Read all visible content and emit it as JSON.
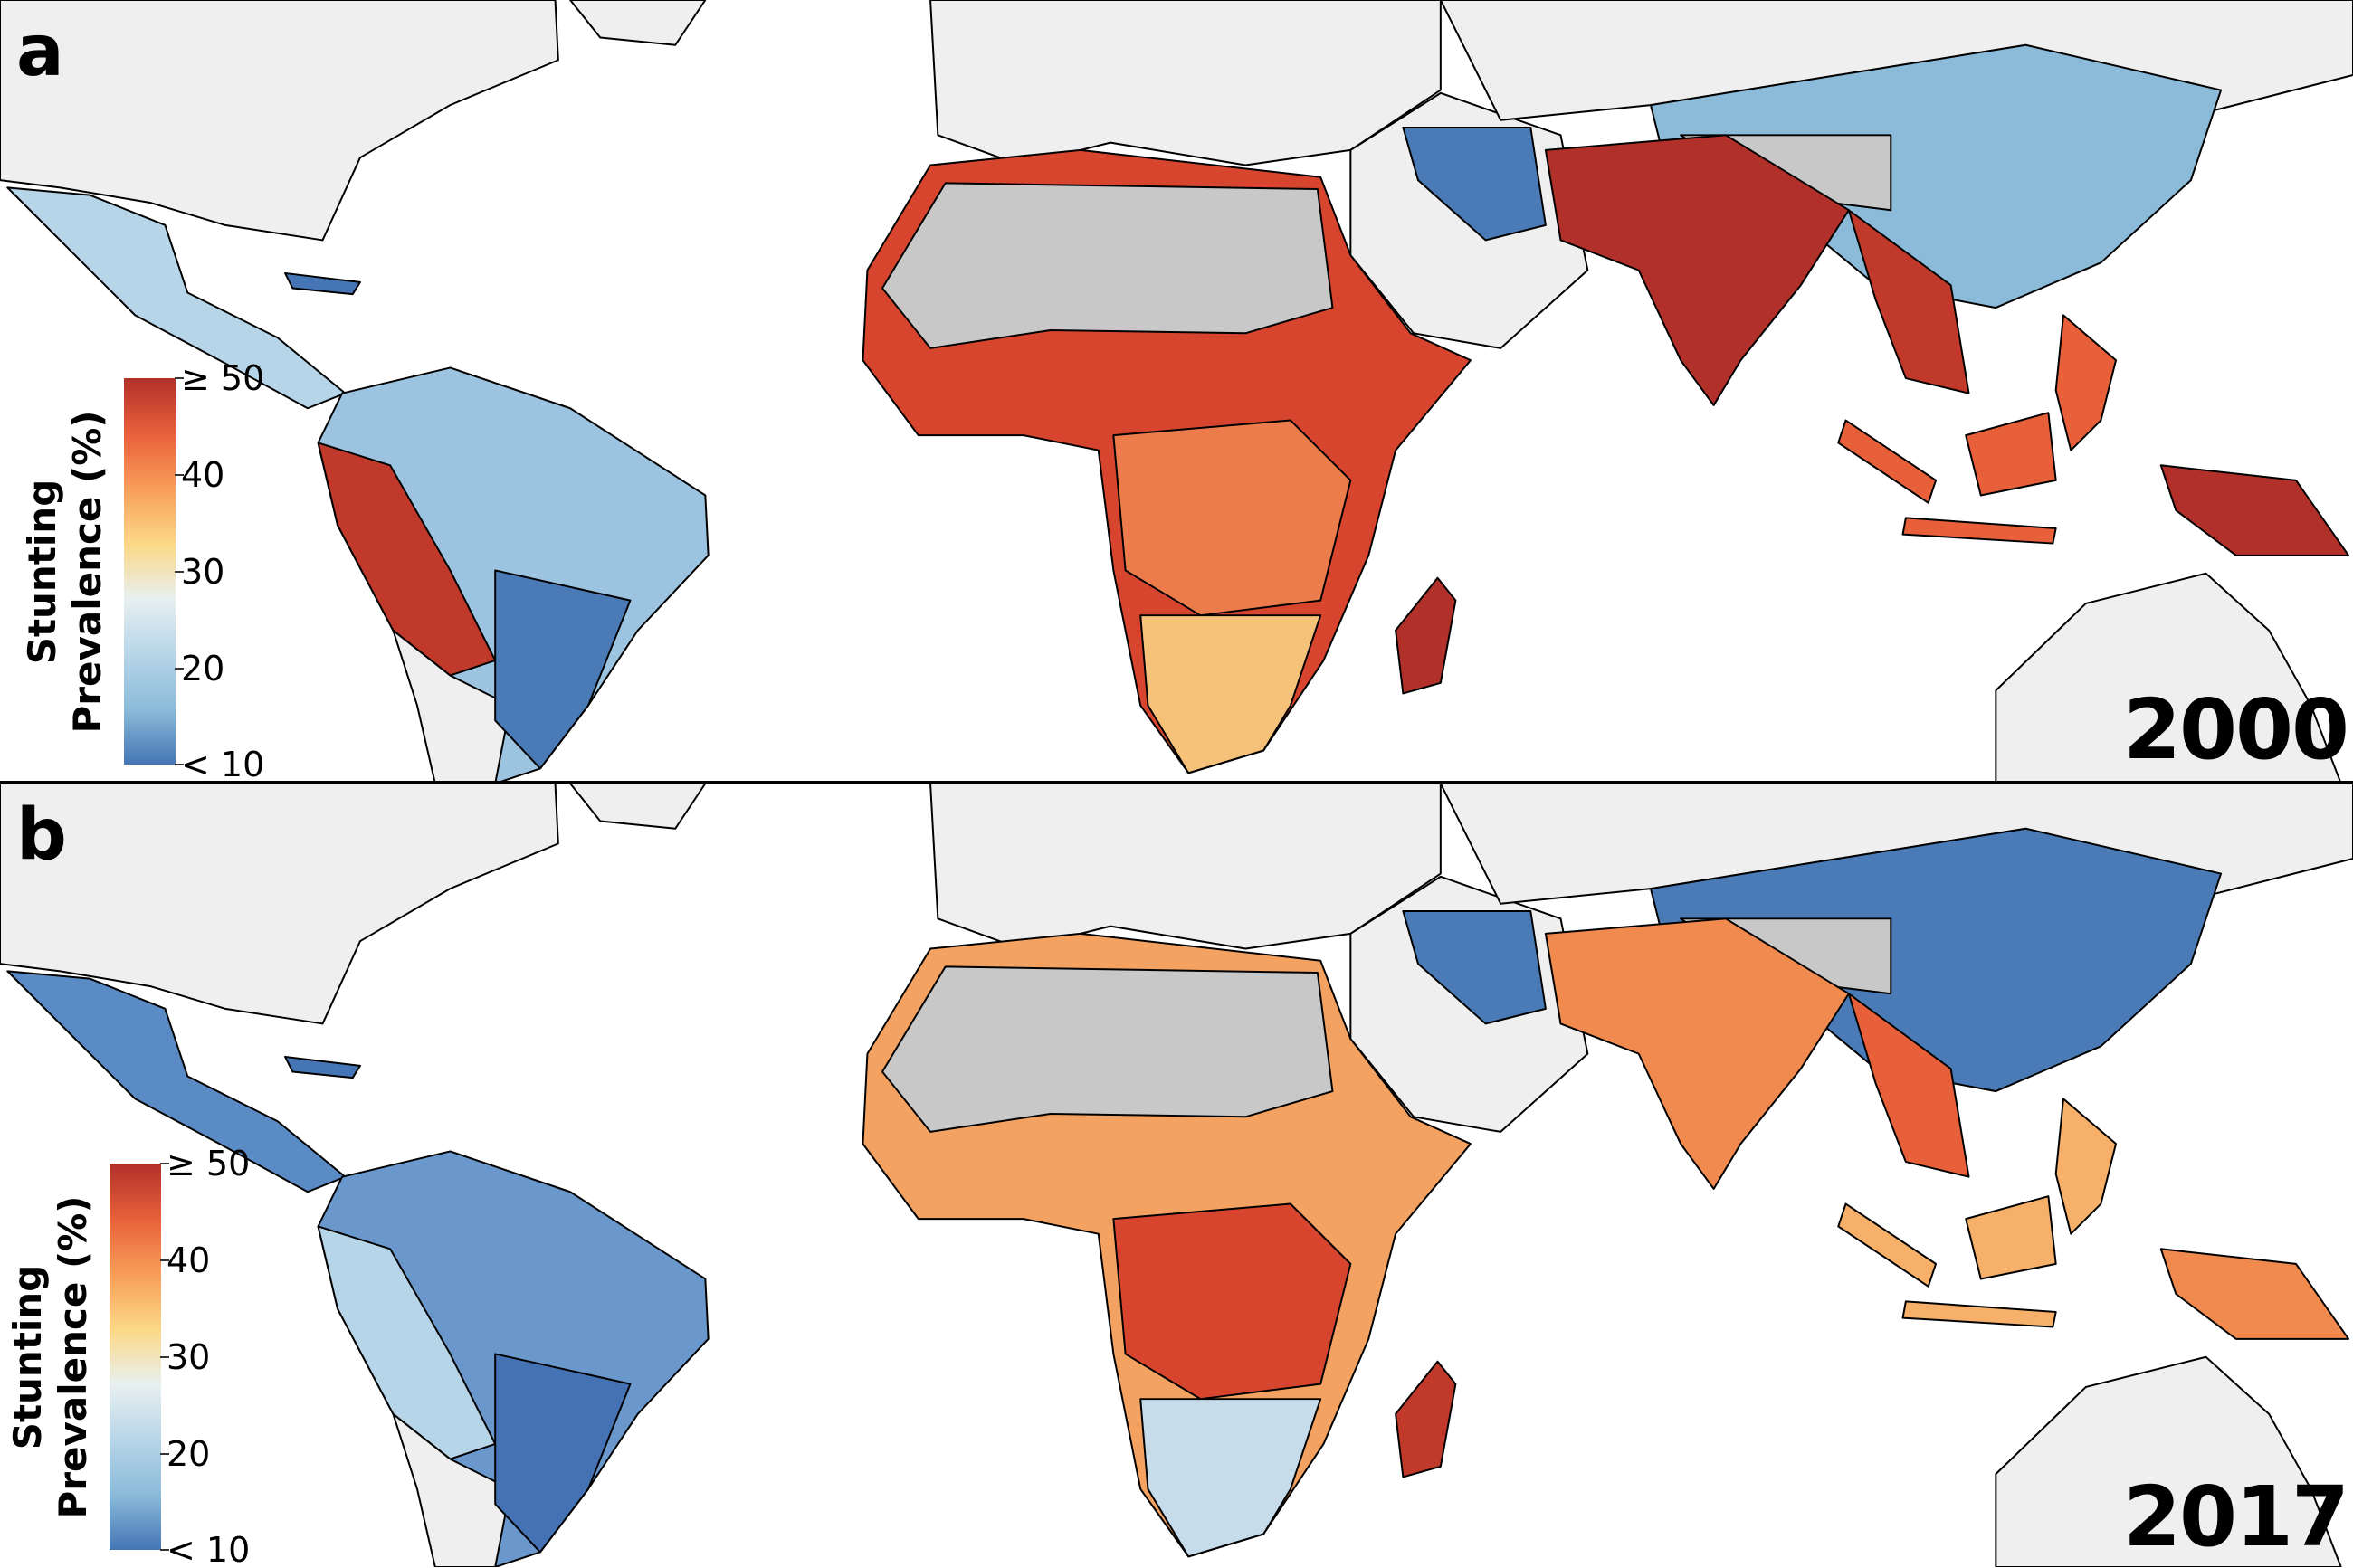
{
  "panels": [
    {
      "label": "a",
      "year": "2000"
    },
    {
      "label": "b",
      "year": "2017"
    }
  ],
  "legend": {
    "title_line1": "Stunting",
    "title_line2": "Prevalence (%)",
    "ticks": [
      "≥ 50",
      "40",
      "30",
      "20",
      "< 10"
    ],
    "colorscale": [
      "#b2302a",
      "#e8603a",
      "#f89d59",
      "#fcd885",
      "#e8f0f0",
      "#b7d5e8",
      "#8bbbd9",
      "#4575b4"
    ]
  },
  "colors": {
    "no_data_land": "#c8c8c8",
    "outside_land": "#efefef",
    "border": "#000000",
    "ocean": "#ffffff"
  }
}
